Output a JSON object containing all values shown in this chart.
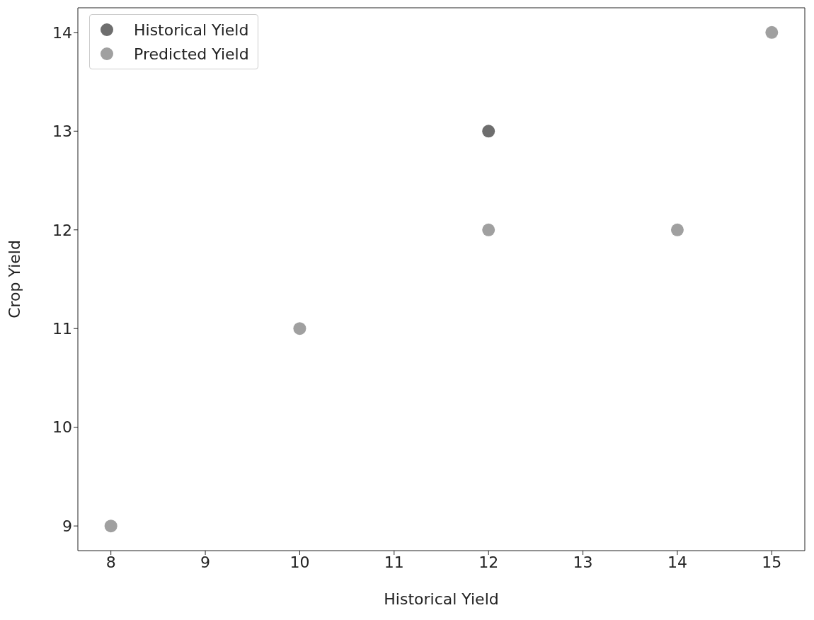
{
  "chart_data": {
    "type": "scatter",
    "xlabel": "Historical Yield",
    "ylabel": "Crop Yield",
    "series": [
      {
        "name": "Historical Yield",
        "color": "#6e6e6e",
        "x": [
          12
        ],
        "values": [
          13
        ]
      },
      {
        "name": "Predicted Yield",
        "color": "#a0a0a0",
        "x": [
          8,
          10,
          12,
          14,
          15
        ],
        "values": [
          9,
          11,
          12,
          12,
          14
        ]
      }
    ],
    "xlim": [
      7.65,
      15.35
    ],
    "xticks": [
      8,
      9,
      10,
      11,
      12,
      13,
      14,
      15
    ],
    "ylim": [
      8.75,
      14.25
    ],
    "yticks": [
      9,
      10,
      11,
      12,
      13,
      14
    ],
    "grid": false,
    "legend": "top left",
    "marker": "circle"
  }
}
